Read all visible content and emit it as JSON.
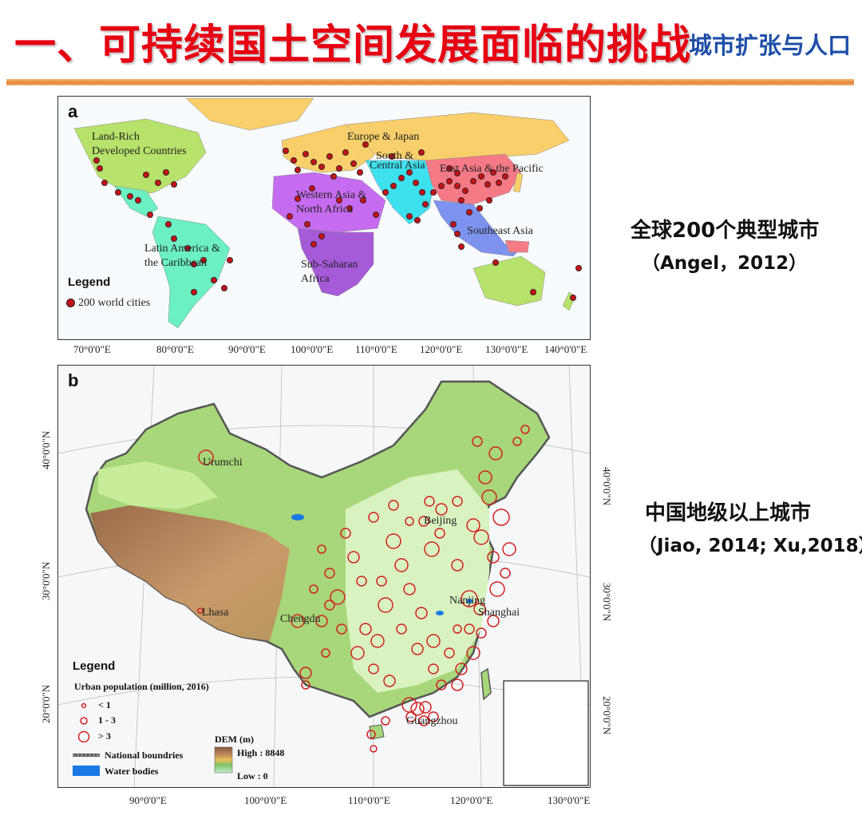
{
  "header": {
    "title": "一、可持续国土空间发展面临的挑战",
    "subtitle": "城市扩张与人口"
  },
  "map_a": {
    "panel_label": "a",
    "regions": [
      {
        "name": "Land-Rich Developed Countries",
        "line1": "Land-Rich",
        "line2": "Developed Countries",
        "color": "#b7e26b"
      },
      {
        "name": "Europe & Japan",
        "color": "#f8cf6a"
      },
      {
        "name": "South & Central Asia",
        "line1": "South &",
        "line2": "Central Asia",
        "color": "#3fe0ee"
      },
      {
        "name": "East Asia & the Pacific",
        "color": "#f57a86"
      },
      {
        "name": "Western Asia & North Africa",
        "line1": "Western Asia &",
        "line2": "North Africa",
        "color": "#c56cf0"
      },
      {
        "name": "Southeast Asia",
        "color": "#7d93ef"
      },
      {
        "name": "Latin America & the Caribbean",
        "line1": "Latin America &",
        "line2": "the Caribbean",
        "color": "#6cefc2"
      },
      {
        "name": "Sub-Saharan Africa",
        "line1": "Sub-Saharan",
        "line2": "Africa",
        "color": "#a55bd8"
      }
    ],
    "legend": {
      "title": "Legend",
      "item": "200 world cities",
      "dot_color": "#c0141a"
    },
    "x_ticks": [
      "70°0'0\"E",
      "80°0'0\"E",
      "90°0'0\"E",
      "100°0'0\"E",
      "110°0'0\"E",
      "120°0'0\"E",
      "130°0'0\"E",
      "140°0'0\"E"
    ]
  },
  "map_b": {
    "panel_label": "b",
    "cities": [
      {
        "name": "Urumchi"
      },
      {
        "name": "Lhasa"
      },
      {
        "name": "Chengdu"
      },
      {
        "name": "Beijing"
      },
      {
        "name": "Nanjing"
      },
      {
        "name": "Shanghai"
      },
      {
        "name": "Guangzhou"
      }
    ],
    "legend": {
      "title": "Legend",
      "population_title": "Urban population (million, 2016)",
      "classes": [
        "< 1",
        "1 - 3",
        "> 3"
      ],
      "national_boundaries": "National boundries",
      "water_bodies": "Water bodies",
      "dem_title": "DEM (m)",
      "dem_high": "High : 8848",
      "dem_low": "Low : 0",
      "circle_color": "#d42020",
      "water_color": "#1a78e6"
    },
    "x_ticks": [
      "90°0'0\"E",
      "100°0'0\"E",
      "110°0'0\"E",
      "120°0'0\"E",
      "130°0'0\"E"
    ],
    "y_ticks_left": [
      "40°0'0\"N",
      "30°0'0\"N",
      "20°0'0\"N"
    ],
    "y_ticks_right": [
      "40°0'0\"N",
      "30°0'0\"N",
      "20°0'0\"N"
    ]
  },
  "captions": {
    "global_cn": "全球200个典型城市",
    "global_ref": "（Angel，2012）",
    "china_cn": "中国地级以上城市",
    "china_ref": "（Jiao, 2014; Xu,2018）"
  }
}
